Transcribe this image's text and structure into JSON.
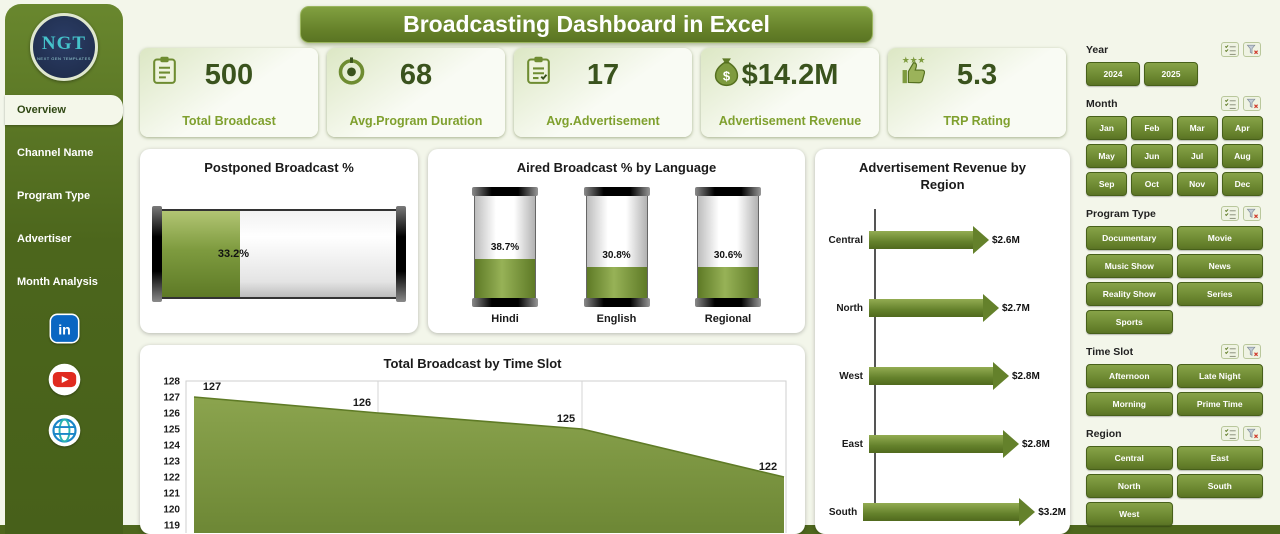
{
  "title": "Broadcasting Dashboard in Excel",
  "colors": {
    "sidebar_green": "#4c661c",
    "accent_green": "#6f8d33",
    "accent_dark": "#47601a",
    "kpi_value": "#3a531d",
    "kpi_label": "#7fa02e",
    "chart_fill": "#7f9a43",
    "linkedin_blue": "#0a66c2",
    "youtube_red": "#e02b20"
  },
  "sidebar": {
    "logo": {
      "text": "NGT",
      "subtext": "NEXT GEN TEMPLATES"
    },
    "items": [
      {
        "label": "Overview",
        "active": true
      },
      {
        "label": "Channel Name",
        "active": false
      },
      {
        "label": "Program Type",
        "active": false
      },
      {
        "label": "Advertiser",
        "active": false
      },
      {
        "label": "Month Analysis",
        "active": false
      }
    ],
    "social": [
      {
        "name": "linkedin"
      },
      {
        "name": "youtube"
      },
      {
        "name": "website"
      }
    ]
  },
  "kpis": [
    {
      "icon": "clipboard",
      "value": "500",
      "label": "Total Broadcast"
    },
    {
      "icon": "target",
      "value": "68",
      "label": "Avg.Program Duration"
    },
    {
      "icon": "clipboard2",
      "value": "17",
      "label": "Avg.Advertisement"
    },
    {
      "icon": "moneybag",
      "value": "$14.2M",
      "label": "Advertisement Revenue"
    },
    {
      "icon": "thumbsup",
      "value": "5.3",
      "label": "TRP Rating"
    }
  ],
  "postponed": {
    "title": "Postponed Broadcast %",
    "value": 33.2,
    "label": "33.2%"
  },
  "aired": {
    "title": "Aired Broadcast % by Language",
    "items": [
      {
        "label": "Hindi",
        "value": 38.7,
        "text": "38.7%"
      },
      {
        "label": "English",
        "value": 30.8,
        "text": "30.8%"
      },
      {
        "label": "Regional",
        "value": 30.6,
        "text": "30.6%"
      }
    ]
  },
  "region_revenue": {
    "title": "Advertisement Revenue by Region",
    "items": [
      {
        "region": "Central",
        "value": 2.6,
        "label": "$2.6M"
      },
      {
        "region": "North",
        "value": 2.7,
        "label": "$2.7M"
      },
      {
        "region": "West",
        "value": 2.8,
        "label": "$2.8M"
      },
      {
        "region": "East",
        "value": 2.8,
        "label": "$2.8M"
      },
      {
        "region": "South",
        "value": 3.2,
        "label": "$3.2M"
      }
    ]
  },
  "time_slot": {
    "title": "Total Broadcast by Time Slot",
    "y_ticks": [
      128,
      127,
      126,
      125,
      124,
      123,
      122,
      121,
      120,
      119
    ],
    "points": [
      127,
      126,
      125,
      122
    ],
    "y_min": 119,
    "y_max": 128
  },
  "slicers": [
    {
      "title": "Year",
      "options": [
        "2024",
        "2025"
      ]
    },
    {
      "title": "Month",
      "options": [
        "Jan",
        "Feb",
        "Mar",
        "Apr",
        "May",
        "Jun",
        "Jul",
        "Aug",
        "Sep",
        "Oct",
        "Nov",
        "Dec"
      ]
    },
    {
      "title": "Program Type",
      "options": [
        "Documentary",
        "Movie",
        "Music Show",
        "News",
        "Reality Show",
        "Series",
        "Sports"
      ]
    },
    {
      "title": "Time Slot",
      "options": [
        "Afternoon",
        "Late Night",
        "Morning",
        "Prime Time"
      ]
    },
    {
      "title": "Region",
      "options": [
        "Central",
        "East",
        "North",
        "South",
        "West"
      ]
    }
  ],
  "chart_data": [
    {
      "type": "bar",
      "title": "Postponed Broadcast %",
      "categories": [
        "Postponed Broadcast %"
      ],
      "values": [
        33.2
      ],
      "unit": "%",
      "xlim": [
        0,
        100
      ],
      "style": "horizontal-battery"
    },
    {
      "type": "bar",
      "title": "Aired Broadcast % by Language",
      "categories": [
        "Hindi",
        "English",
        "Regional"
      ],
      "values": [
        38.7,
        30.8,
        30.6
      ],
      "unit": "%",
      "ylim": [
        0,
        100
      ],
      "style": "vertical-battery"
    },
    {
      "type": "bar",
      "title": "Advertisement Revenue by Region",
      "categories": [
        "Central",
        "North",
        "West",
        "East",
        "South"
      ],
      "values": [
        2.6,
        2.7,
        2.8,
        2.8,
        3.2
      ],
      "labels": [
        "$2.6M",
        "$2.7M",
        "$2.8M",
        "$2.8M",
        "$3.2M"
      ],
      "unit": "$M",
      "orientation": "horizontal",
      "style": "arrow"
    },
    {
      "type": "area",
      "title": "Total Broadcast by Time Slot",
      "x": [
        1,
        2,
        3,
        4
      ],
      "values": [
        127,
        126,
        125,
        122
      ],
      "ylim": [
        119,
        128
      ],
      "y_ticks": [
        128,
        127,
        126,
        125,
        124,
        123,
        122,
        121,
        120,
        119
      ],
      "grid": "vertical",
      "note": "x-axis category labels cut off at image edge"
    }
  ]
}
